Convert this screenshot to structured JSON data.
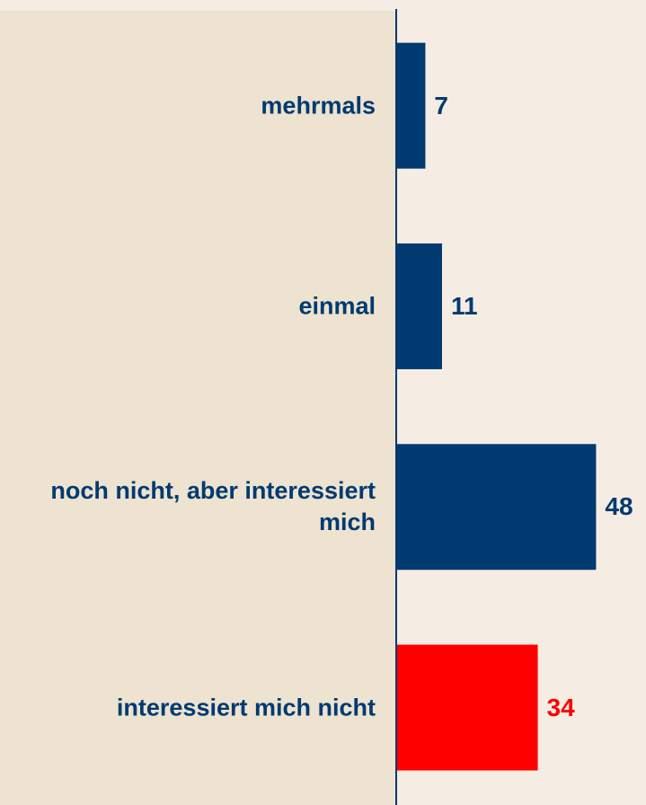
{
  "chart_data": {
    "type": "barh",
    "categories": [
      "mehrmals",
      "einmal",
      "noch nicht, aber interessiert mich",
      "interessiert mich nicht"
    ],
    "values": [
      7,
      11,
      48,
      34
    ],
    "colors": [
      "#003a70",
      "#003a70",
      "#003a70",
      "#ff0000"
    ],
    "xlim": [
      0,
      60
    ]
  }
}
